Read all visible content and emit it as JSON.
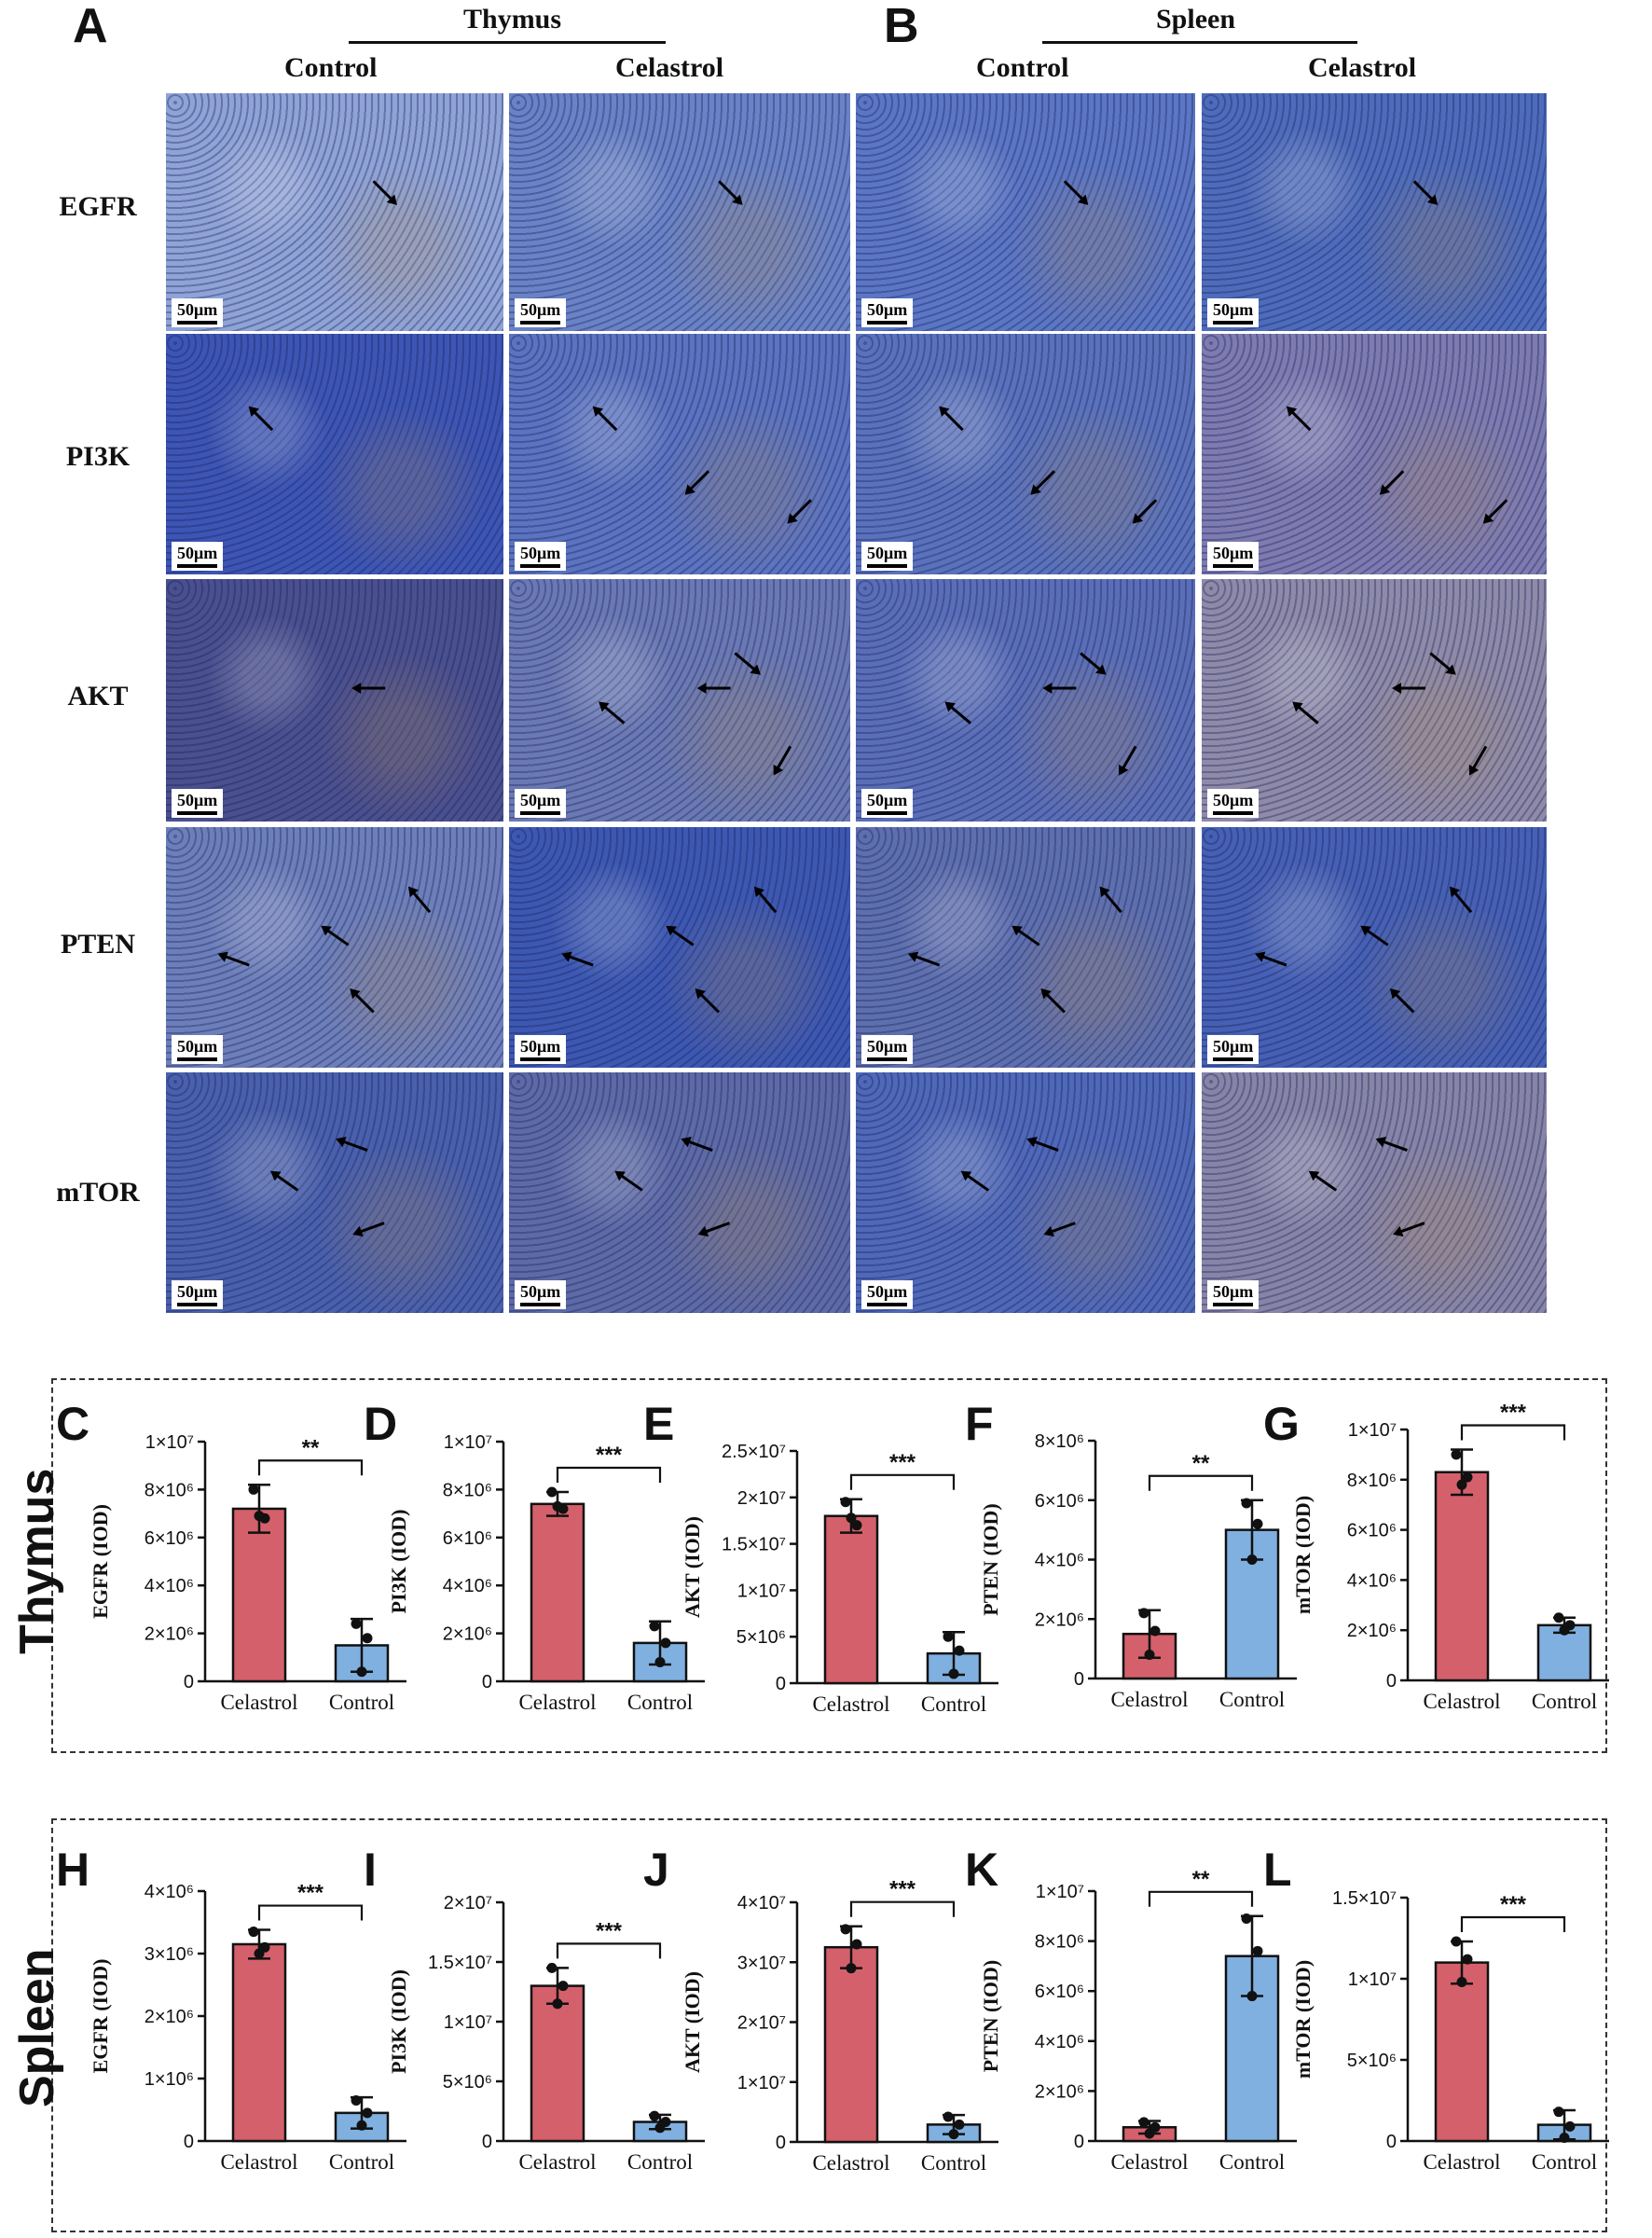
{
  "section_labels": {
    "A": "A",
    "B": "B"
  },
  "headers": {
    "thymus": "Thymus",
    "spleen": "Spleen",
    "control": "Control",
    "celastrol": "Celastrol"
  },
  "row_labels": [
    "EGFR",
    "PI3K",
    "AKT",
    "PTEN",
    "mTOR"
  ],
  "scale_bar": "50μm",
  "group_labels": {
    "thymus": "Thymus",
    "spleen": "Spleen"
  },
  "colors": {
    "celastrol": "#d4606b",
    "control": "#7fb0e0",
    "tissue_blue": "#3c58b0",
    "stain_brown": "#b8935a"
  },
  "chart_data": [
    {
      "id": "C",
      "type": "bar",
      "group": "thymus",
      "categories": [
        "Celastrol",
        "Control"
      ],
      "values": [
        7200000.0,
        1500000.0
      ],
      "errors": [
        1000000.0,
        1100000.0
      ],
      "points": [
        [
          8000000.0,
          6800000.0,
          6900000.0
        ],
        [
          2400000.0,
          1800000.0,
          400000.0
        ]
      ],
      "ylabel": "EGFR (IOD)",
      "ylim": [
        0,
        10000000.0
      ],
      "ticks": [
        0,
        2000000.0,
        4000000.0,
        6000000.0,
        8000000.0,
        10000000.0
      ],
      "tick_labels": [
        "0",
        "2×10⁶",
        "4×10⁶",
        "6×10⁶",
        "8×10⁶",
        "1×10⁷"
      ],
      "sig": "**"
    },
    {
      "id": "D",
      "type": "bar",
      "group": "thymus",
      "categories": [
        "Celastrol",
        "Control"
      ],
      "values": [
        7400000.0,
        1600000.0
      ],
      "errors": [
        500000.0,
        900000.0
      ],
      "points": [
        [
          7900000.0,
          7200000.0,
          7300000.0
        ],
        [
          2300000.0,
          1600000.0,
          800000.0
        ]
      ],
      "ylabel": "PI3K (IOD)",
      "ylim": [
        0,
        10000000.0
      ],
      "ticks": [
        0,
        2000000.0,
        4000000.0,
        6000000.0,
        8000000.0,
        10000000.0
      ],
      "tick_labels": [
        "0",
        "2×10⁶",
        "4×10⁶",
        "6×10⁶",
        "8×10⁶",
        "1×10⁷"
      ],
      "sig": "***"
    },
    {
      "id": "E",
      "type": "bar",
      "group": "thymus",
      "categories": [
        "Celastrol",
        "Control"
      ],
      "values": [
        18000000.0,
        3200000.0
      ],
      "errors": [
        1800000.0,
        2300000.0
      ],
      "points": [
        [
          19500000.0,
          17000000.0,
          17800000.0
        ],
        [
          5000000.0,
          3500000.0,
          1000000.0
        ]
      ],
      "ylabel": "AKT (IOD)",
      "ylim": [
        0,
        25000000.0
      ],
      "ticks": [
        0,
        5000000.0,
        10000000.0,
        15000000.0,
        20000000.0,
        25000000.0
      ],
      "tick_labels": [
        "0",
        "5×10⁶",
        "1×10⁷",
        "1.5×10⁷",
        "2×10⁷",
        "2.5×10⁷"
      ],
      "sig": "***"
    },
    {
      "id": "F",
      "type": "bar",
      "group": "thymus",
      "categories": [
        "Celastrol",
        "Control"
      ],
      "values": [
        1500000.0,
        5000000.0
      ],
      "errors": [
        800000.0,
        1000000.0
      ],
      "points": [
        [
          2200000.0,
          1600000.0,
          800000.0
        ],
        [
          5900000.0,
          5200000.0,
          4000000.0
        ]
      ],
      "ylabel": "PTEN (IOD)",
      "ylim": [
        0,
        8000000.0
      ],
      "ticks": [
        0,
        2000000.0,
        4000000.0,
        6000000.0,
        8000000.0
      ],
      "tick_labels": [
        "0",
        "2×10⁶",
        "4×10⁶",
        "6×10⁶",
        "8×10⁶"
      ],
      "sig": "**"
    },
    {
      "id": "G",
      "type": "bar",
      "group": "thymus",
      "categories": [
        "Celastrol",
        "Control"
      ],
      "values": [
        8300000.0,
        2200000.0
      ],
      "errors": [
        900000.0,
        300000.0
      ],
      "points": [
        [
          9000000.0,
          8100000.0,
          7800000.0
        ],
        [
          2500000.0,
          2200000.0,
          2000000.0
        ]
      ],
      "ylabel": "mTOR (IOD)",
      "ylim": [
        0,
        10000000.0
      ],
      "ticks": [
        0,
        2000000.0,
        4000000.0,
        6000000.0,
        8000000.0,
        10000000.0
      ],
      "tick_labels": [
        "0",
        "2×10⁶",
        "4×10⁶",
        "6×10⁶",
        "8×10⁶",
        "1×10⁷"
      ],
      "sig": "***"
    },
    {
      "id": "H",
      "type": "bar",
      "group": "spleen",
      "categories": [
        "Celastrol",
        "Control"
      ],
      "values": [
        3150000.0,
        450000.0
      ],
      "errors": [
        230000.0,
        250000.0
      ],
      "points": [
        [
          3350000.0,
          3100000.0,
          3000000.0
        ],
        [
          650000.0,
          450000.0,
          250000.0
        ]
      ],
      "ylabel": "EGFR (IOD)",
      "ylim": [
        0,
        4000000.0
      ],
      "ticks": [
        0,
        1000000.0,
        2000000.0,
        3000000.0,
        4000000.0
      ],
      "tick_labels": [
        "0",
        "1×10⁶",
        "2×10⁶",
        "3×10⁶",
        "4×10⁶"
      ],
      "sig": "***"
    },
    {
      "id": "I",
      "type": "bar",
      "group": "spleen",
      "categories": [
        "Celastrol",
        "Control"
      ],
      "values": [
        13000000.0,
        1600000.0
      ],
      "errors": [
        1500000.0,
        600000.0
      ],
      "points": [
        [
          14500000.0,
          13000000.0,
          11500000.0
        ],
        [
          2100000.0,
          1600000.0,
          1100000.0
        ]
      ],
      "ylabel": "PI3K (IOD)",
      "ylim": [
        0,
        20000000.0
      ],
      "ticks": [
        0,
        5000000.0,
        10000000.0,
        15000000.0,
        20000000.0
      ],
      "tick_labels": [
        "0",
        "5×10⁶",
        "1×10⁷",
        "1.5×10⁷",
        "2×10⁷"
      ],
      "sig": "***"
    },
    {
      "id": "J",
      "type": "bar",
      "group": "spleen",
      "categories": [
        "Celastrol",
        "Control"
      ],
      "values": [
        32500000.0,
        2900000.0
      ],
      "errors": [
        3500000.0,
        1600000.0
      ],
      "points": [
        [
          35500000.0,
          33000000.0,
          29000000.0
        ],
        [
          4200000.0,
          2900000.0,
          1300000.0
        ]
      ],
      "ylabel": "AKT (IOD)",
      "ylim": [
        0,
        40000000.0
      ],
      "ticks": [
        0,
        10000000.0,
        20000000.0,
        30000000.0,
        40000000.0
      ],
      "tick_labels": [
        "0",
        "1×10⁷",
        "2×10⁷",
        "3×10⁷",
        "4×10⁷"
      ],
      "sig": "***"
    },
    {
      "id": "K",
      "type": "bar",
      "group": "spleen",
      "categories": [
        "Celastrol",
        "Control"
      ],
      "values": [
        550000.0,
        7400000.0
      ],
      "errors": [
        250000.0,
        1600000.0
      ],
      "points": [
        [
          750000.0,
          550000.0,
          300000.0
        ],
        [
          8900000.0,
          7600000.0,
          5800000.0
        ]
      ],
      "ylabel": "PTEN (IOD)",
      "ylim": [
        0,
        10000000.0
      ],
      "ticks": [
        0,
        2000000.0,
        4000000.0,
        6000000.0,
        8000000.0,
        10000000.0
      ],
      "tick_labels": [
        "0",
        "2×10⁶",
        "4×10⁶",
        "6×10⁶",
        "8×10⁶",
        "1×10⁷"
      ],
      "sig": "**"
    },
    {
      "id": "L",
      "type": "bar",
      "group": "spleen",
      "categories": [
        "Celastrol",
        "Control"
      ],
      "values": [
        11000000.0,
        1000000.0
      ],
      "errors": [
        1300000.0,
        900000.0
      ],
      "points": [
        [
          12300000.0,
          11200000.0,
          9800000.0
        ],
        [
          1800000.0,
          900000.0,
          200000.0
        ]
      ],
      "ylabel": "mTOR (IOD)",
      "ylim": [
        0,
        15000000.0
      ],
      "ticks": [
        0,
        5000000.0,
        10000000.0,
        15000000.0
      ],
      "tick_labels": [
        "0",
        "5×10⁶",
        "1×10⁷",
        "1.5×10⁷"
      ],
      "sig": "***"
    }
  ]
}
